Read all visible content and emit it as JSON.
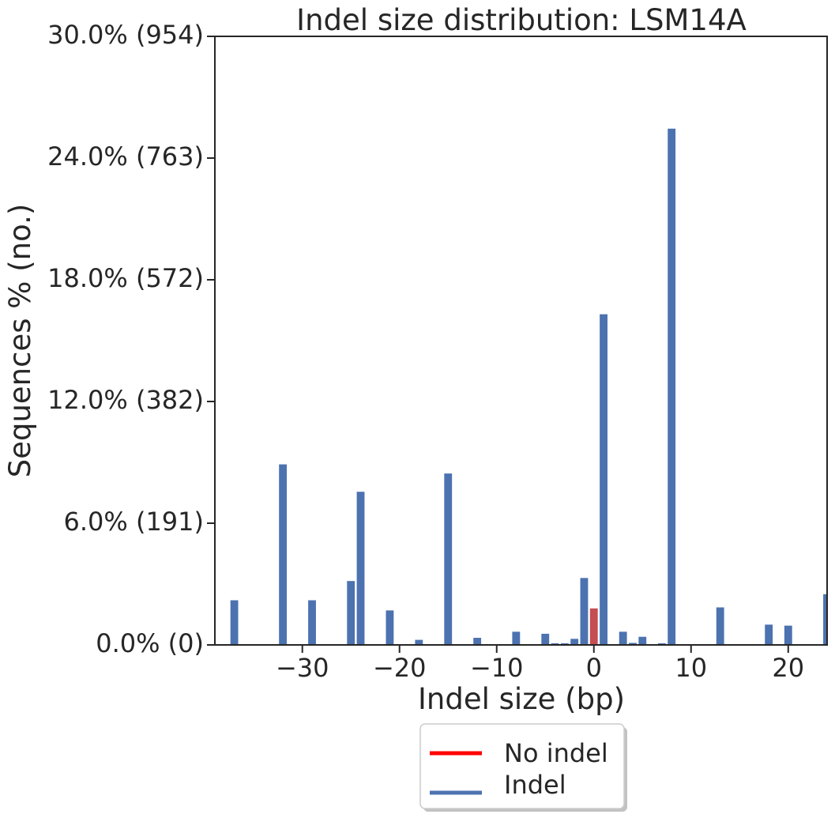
{
  "chart_data": {
    "type": "bar",
    "title": "Indel size distribution: LSM14A",
    "xlabel": "Indel size (bp)",
    "ylabel": "Sequences % (no.)",
    "xlim": [
      -39,
      24
    ],
    "ylim": [
      0,
      30
    ],
    "xticks": [
      -30,
      -20,
      -10,
      0,
      10,
      20
    ],
    "xtick_labels": [
      "−30",
      "−20",
      "−10",
      "0",
      "10",
      "20"
    ],
    "yticks": [
      0,
      6,
      12,
      18,
      24,
      30
    ],
    "ytick_labels": [
      "0.0% (0)",
      "6.0% (191)",
      "12.0% (382)",
      "18.0% (572)",
      "24.0% (763)",
      "30.0% (954)"
    ],
    "grid": false,
    "legend_position": "below",
    "series": [
      {
        "name": "No indel",
        "color": "#c44e52",
        "legend_color": "#ff0000",
        "x": [
          0
        ],
        "values": [
          1.8
        ]
      },
      {
        "name": "Indel",
        "color": "#4c72b0",
        "x": [
          -37,
          -32,
          -29,
          -25,
          -24,
          -21,
          -18,
          -15,
          -12,
          -8,
          -5,
          -4,
          -3,
          -2,
          -1,
          1,
          3,
          4,
          5,
          7,
          8,
          13,
          18,
          20,
          24
        ],
        "values": [
          2.2,
          8.9,
          2.2,
          3.15,
          7.55,
          1.7,
          0.25,
          8.45,
          0.35,
          0.65,
          0.55,
          0.08,
          0.08,
          0.3,
          3.3,
          16.3,
          0.65,
          0.1,
          0.4,
          0.08,
          25.45,
          1.85,
          1.0,
          0.95,
          2.5
        ]
      }
    ]
  }
}
